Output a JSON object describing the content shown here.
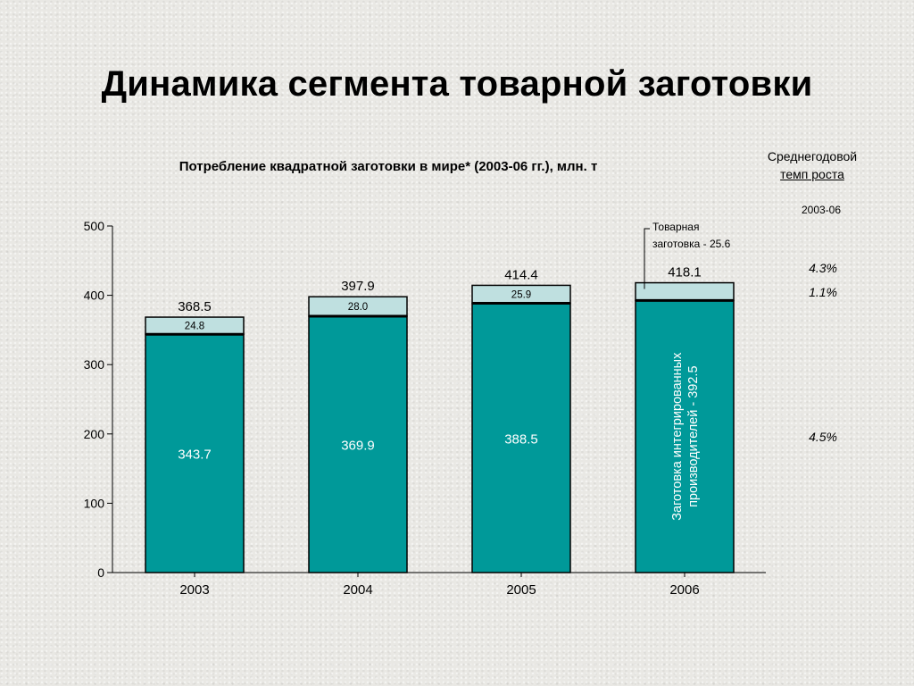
{
  "slide": {
    "title": "Динамика сегмента товарной заготовки"
  },
  "growth": {
    "heading_line1": "Среднегодовой",
    "heading_line2": "темп роста",
    "period": "2003-06",
    "rates": {
      "total": "4.3%",
      "market": "1.1%",
      "integrated": "4.5%"
    }
  },
  "colors": {
    "integrated": "#009999",
    "market": "#bfe0e0",
    "outline": "#000000"
  },
  "chart_data": {
    "type": "bar",
    "stacked": true,
    "title": "Потребление квадратной заготовки в мире* (2003-06 гг.), млн. т",
    "xlabel": "",
    "ylabel": "",
    "ylim": [
      0,
      500
    ],
    "yticks": [
      0,
      100,
      200,
      300,
      400,
      500
    ],
    "grid": false,
    "categories": [
      "2003",
      "2004",
      "2005",
      "2006"
    ],
    "series": [
      {
        "name": "Заготовка интегрированных производителей",
        "values": [
          343.7,
          369.9,
          388.5,
          392.5
        ]
      },
      {
        "name": "Товарная заготовка",
        "values": [
          24.8,
          28.0,
          25.9,
          25.6
        ]
      }
    ],
    "totals": [
      368.5,
      397.9,
      414.4,
      418.1
    ],
    "bottom_labels": [
      "343.7",
      "369.9",
      "388.5",
      null
    ],
    "top_labels": [
      "24.8",
      "28.0",
      "25.9",
      null
    ],
    "total_labels": [
      "368.5",
      "397.9",
      "414.4",
      "418.1"
    ],
    "annotations": {
      "callout_line1": "Товарная",
      "callout_line2": "заготовка - 25.6",
      "rotated_line1": "Заготовка интегрированных",
      "rotated_line2": "производителей - 392.5"
    }
  }
}
